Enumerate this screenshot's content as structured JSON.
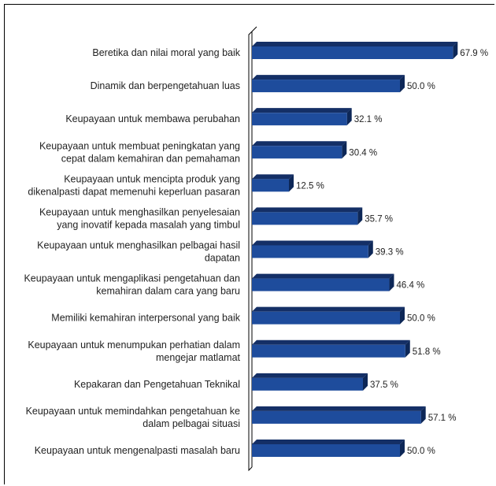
{
  "chart_data": {
    "type": "bar",
    "orientation": "horizontal",
    "style": "3d",
    "bar_color": "#1e4c9c",
    "bar_side_color": "#0d2757",
    "bar_top_color": "#142f66",
    "value_suffix": " %",
    "xlim": [
      0,
      100
    ],
    "categories": [
      "Beretika dan nilai moral yang baik",
      "Dinamik dan berpengetahuan luas",
      "Keupayaan untuk membawa perubahan",
      "Keupayaan untuk membuat peningkatan yang cepat dalam kemahiran dan pemahaman",
      "Keupayaan untuk mencipta produk yang dikenalpasti dapat memenuhi keperluan pasaran",
      "Keupayaan untuk menghasilkan penyelesaian yang inovatif kepada masalah yang timbul",
      "Keupayaan untuk menghasilkan pelbagai hasil dapatan",
      "Keupayaan untuk mengaplikasi pengetahuan dan kemahiran dalam cara yang baru",
      "Memiliki kemahiran interpersonal yang baik",
      "Keupayaan untuk menumpukan perhatian dalam mengejar matlamat",
      "Kepakaran dan Pengetahuan Teknikal",
      "Keupayaan untuk memindahkan pengetahuan ke dalam pelbagai situasi",
      "Keupayaan untuk mengenalpasti masalah baru"
    ],
    "category_lines": [
      [
        "Beretika dan nilai moral yang baik"
      ],
      [
        "Dinamik dan berpengetahuan luas"
      ],
      [
        "Keupayaan untuk membawa perubahan"
      ],
      [
        "Keupayaan untuk membuat peningkatan yang",
        "cepat dalam kemahiran dan pemahaman"
      ],
      [
        "Keupayaan untuk mencipta produk yang",
        "dikenalpasti dapat memenuhi keperluan pasaran"
      ],
      [
        "Keupayaan untuk menghasilkan penyelesaian",
        "yang inovatif kepada masalah yang timbul"
      ],
      [
        "Keupayaan untuk menghasilkan pelbagai hasil",
        "dapatan"
      ],
      [
        "Keupayaan untuk mengaplikasi pengetahuan dan",
        "kemahiran dalam cara yang baru"
      ],
      [
        "Memiliki kemahiran interpersonal yang baik"
      ],
      [
        "Keupayaan untuk menumpukan perhatian dalam",
        "mengejar matlamat"
      ],
      [
        "Kepakaran dan Pengetahuan Teknikal"
      ],
      [
        "Keupayaan untuk memindahkan pengetahuan ke",
        "dalam pelbagai situasi"
      ],
      [
        "Keupayaan untuk mengenalpasti masalah baru"
      ]
    ],
    "values": [
      67.9,
      50.0,
      32.1,
      30.4,
      12.5,
      35.7,
      39.3,
      46.4,
      50.0,
      51.8,
      37.5,
      57.1,
      50.0
    ],
    "value_labels": [
      "67.9 %",
      "50.0 %",
      "32.1 %",
      "30.4 %",
      "12.5 %",
      "35.7 %",
      "39.3 %",
      "46.4 %",
      "50.0 %",
      "51.8 %",
      "37.5 %",
      "57.1 %",
      "50.0 %"
    ]
  }
}
